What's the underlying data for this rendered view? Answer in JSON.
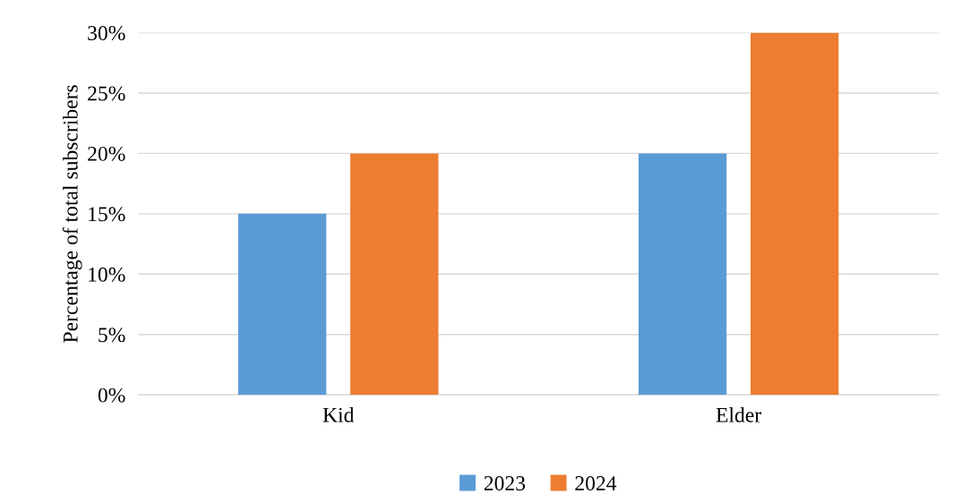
{
  "chart_data": {
    "type": "bar",
    "ylabel": "Percentage of total subscribers",
    "categories": [
      "Kid",
      "Elder"
    ],
    "series": [
      {
        "name": "2023",
        "color": "#5b9bd5",
        "values": [
          15,
          20
        ]
      },
      {
        "name": "2024",
        "color": "#ed7d31",
        "values": [
          20,
          30
        ]
      }
    ],
    "ylim": [
      0,
      30
    ],
    "yticks": [
      {
        "value": 0,
        "label": "0%"
      },
      {
        "value": 5,
        "label": "5%"
      },
      {
        "value": 10,
        "label": "10%"
      },
      {
        "value": 15,
        "label": "15%"
      },
      {
        "value": 20,
        "label": "20%"
      },
      {
        "value": 25,
        "label": "25%"
      },
      {
        "value": 30,
        "label": "30%"
      }
    ],
    "grid": "y",
    "legend": "bottom"
  }
}
